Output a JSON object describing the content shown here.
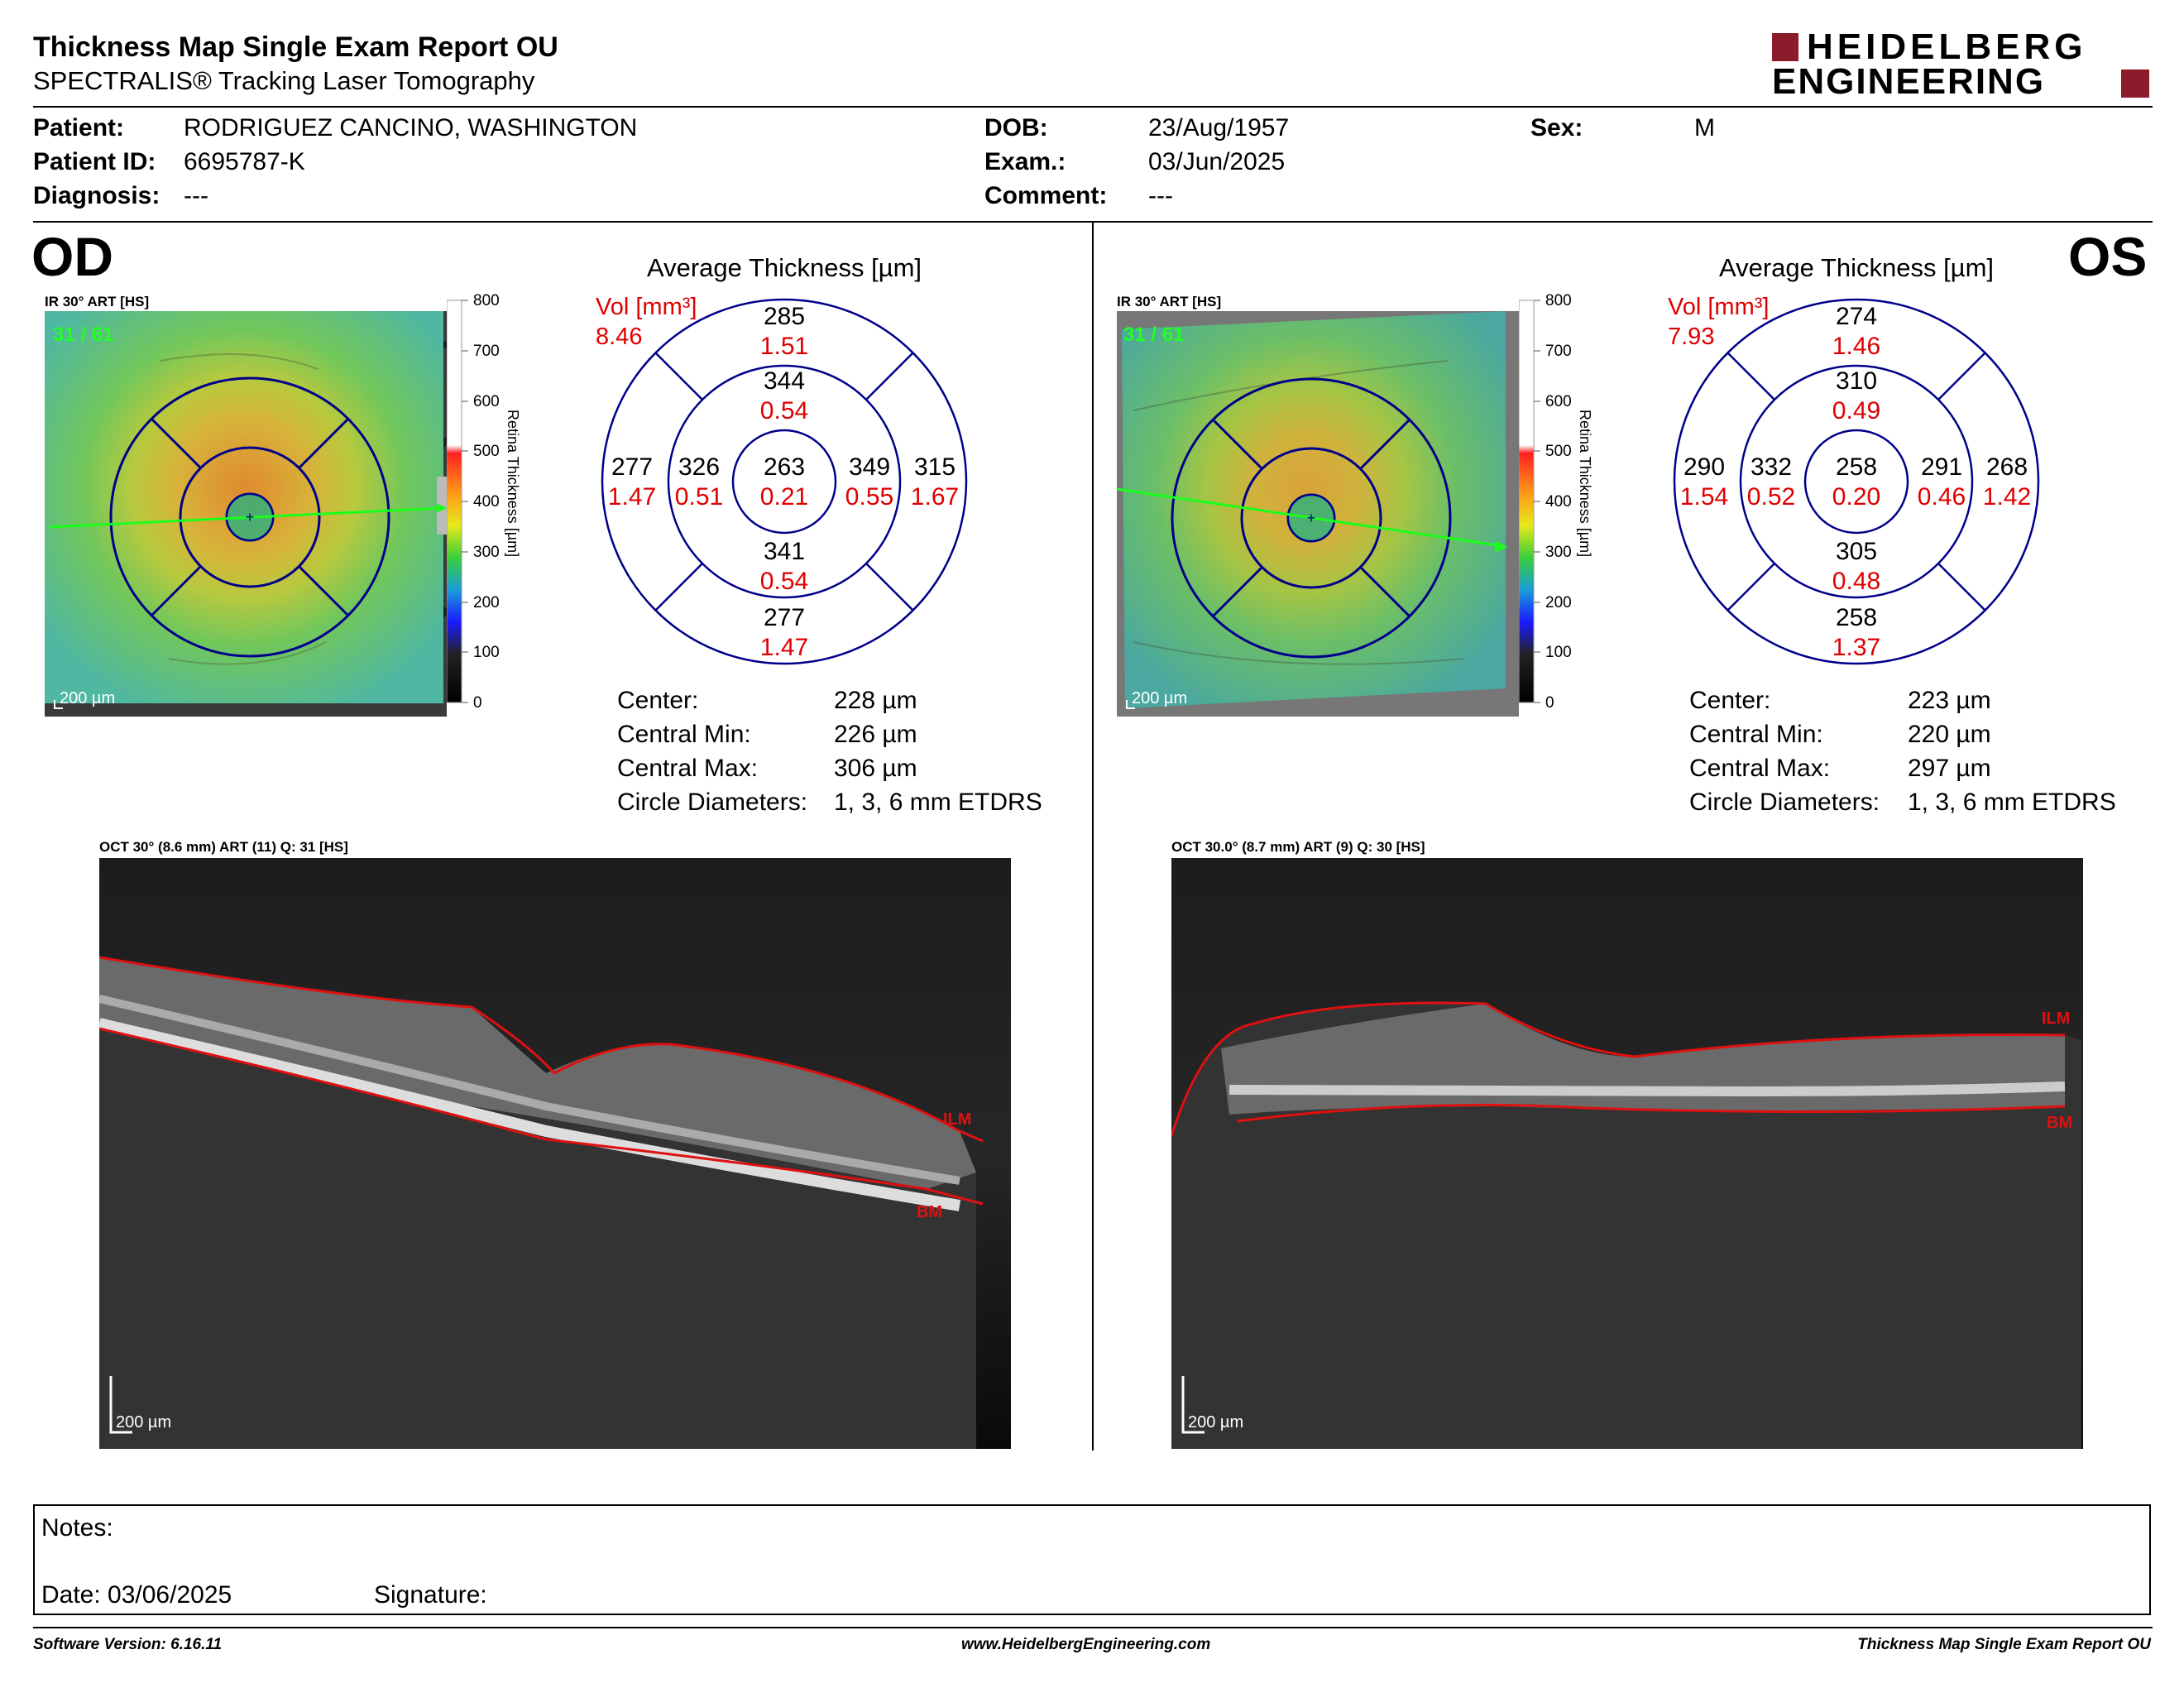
{
  "header": {
    "title": "Thickness Map Single Exam Report OU",
    "subtitle": "SPECTRALIS® Tracking Laser Tomography",
    "logo_line1": "HEIDELBERG",
    "logo_line2": "ENGINEERING"
  },
  "patient": {
    "patient_label": "Patient:",
    "patient_value": "RODRIGUEZ CANCINO, WASHINGTON",
    "id_label": "Patient ID:",
    "id_value": "6695787-K",
    "diagnosis_label": "Diagnosis:",
    "diagnosis_value": "---",
    "dob_label": "DOB:",
    "dob_value": "23/Aug/1957",
    "exam_label": "Exam.:",
    "exam_value": "03/Jun/2025",
    "comment_label": "Comment:",
    "comment_value": "---",
    "sex_label": "Sex:",
    "sex_value": "M"
  },
  "colors": {
    "accent": "#8b1a2b",
    "grid": "#00008b",
    "vol": "#e00000",
    "ilm": "#e01010"
  },
  "od": {
    "eye_label": "OD",
    "ir_caption": "IR 30° ART [HS]",
    "ir_counter": "31 / 61",
    "scale_label": "200 µm",
    "colorbar_title": "Retina  Thickness [µm]",
    "colorbar_ticks": [
      "800",
      "700",
      "600",
      "500",
      "400",
      "300",
      "200",
      "100",
      "0"
    ],
    "avg_title": "Average Thickness [µm]",
    "vol_label": "Vol [mm³]",
    "vol_total": "8.46",
    "sectors": {
      "center": {
        "t": "263",
        "v": "0.21"
      },
      "inner_sup": {
        "t": "344",
        "v": "0.54"
      },
      "inner_inf": {
        "t": "341",
        "v": "0.54"
      },
      "inner_left": {
        "t": "326",
        "v": "0.51"
      },
      "inner_right": {
        "t": "349",
        "v": "0.55"
      },
      "outer_sup": {
        "t": "285",
        "v": "1.51"
      },
      "outer_inf": {
        "t": "277",
        "v": "1.47"
      },
      "outer_left": {
        "t": "277",
        "v": "1.47"
      },
      "outer_right": {
        "t": "315",
        "v": "1.67"
      }
    },
    "stats": [
      {
        "label": "Center:",
        "value": "228 µm"
      },
      {
        "label": "Central Min:",
        "value": "226 µm"
      },
      {
        "label": "Central Max:",
        "value": "306 µm"
      },
      {
        "label": "Circle Diameters:",
        "value": "1, 3, 6 mm ETDRS"
      }
    ],
    "oct_caption": "OCT 30° (8.6 mm) ART (11) Q: 31 [HS]",
    "ilm": "ILM",
    "bm": "BM"
  },
  "os": {
    "eye_label": "OS",
    "ir_caption": "IR 30° ART [HS]",
    "ir_counter": "31 / 61",
    "scale_label": "200 µm",
    "colorbar_title": "Retina  Thickness [µm]",
    "colorbar_ticks": [
      "800",
      "700",
      "600",
      "500",
      "400",
      "300",
      "200",
      "100",
      "0"
    ],
    "avg_title": "Average Thickness [µm]",
    "vol_label": "Vol [mm³]",
    "vol_total": "7.93",
    "sectors": {
      "center": {
        "t": "258",
        "v": "0.20"
      },
      "inner_sup": {
        "t": "310",
        "v": "0.49"
      },
      "inner_inf": {
        "t": "305",
        "v": "0.48"
      },
      "inner_left": {
        "t": "332",
        "v": "0.52"
      },
      "inner_right": {
        "t": "291",
        "v": "0.46"
      },
      "outer_sup": {
        "t": "274",
        "v": "1.46"
      },
      "outer_inf": {
        "t": "258",
        "v": "1.37"
      },
      "outer_left": {
        "t": "290",
        "v": "1.54"
      },
      "outer_right": {
        "t": "268",
        "v": "1.42"
      }
    },
    "stats": [
      {
        "label": "Center:",
        "value": "223 µm"
      },
      {
        "label": "Central Min:",
        "value": "220 µm"
      },
      {
        "label": "Central Max:",
        "value": "297 µm"
      },
      {
        "label": "Circle Diameters:",
        "value": "1, 3, 6 mm ETDRS"
      }
    ],
    "oct_caption": "OCT 30.0° (8.7 mm) ART (9) Q: 30 [HS]",
    "ilm": "ILM",
    "bm": "BM"
  },
  "notes": {
    "notes_label": "Notes:",
    "date_label": "Date: 03/06/2025",
    "signature_label": "Signature:"
  },
  "footer": {
    "software": "Software Version: 6.16.11",
    "website": "www.HeidelbergEngineering.com",
    "report": "Thickness Map Single Exam Report OU"
  }
}
